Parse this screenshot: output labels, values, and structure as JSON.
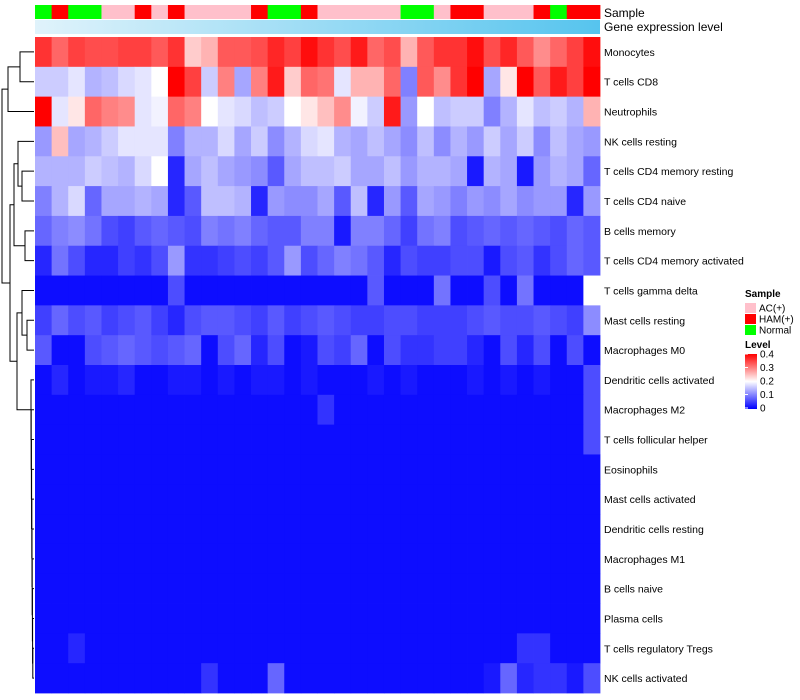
{
  "chart_data": {
    "type": "heatmap",
    "title": "",
    "annotations": {
      "sample_label": "Sample",
      "gene_label": "Gene expression level"
    },
    "legend": {
      "position": "right",
      "sample_title": "Sample",
      "sample_groups": [
        "AC(+)",
        "HAM(+)",
        "Normal"
      ],
      "level_title": "Level",
      "level_ticks": [
        "0.4",
        "0.3",
        "0.2",
        "0.1",
        "0"
      ],
      "level_range": [
        0,
        0.4
      ]
    },
    "colors": {
      "low": "#0000ff",
      "mid": "#ffffff",
      "high": "#ff0000",
      "AC(+)": "#ffc0cb",
      "HAM(+)": "#ff0000",
      "Normal": "#00ff00",
      "gene_bar_low": "#e0f3fb",
      "gene_bar_high": "#56c4ee",
      "dendrogram": "#000000"
    },
    "columns": [
      "Normal",
      "HAM(+)",
      "Normal",
      "Normal",
      "AC(+)",
      "AC(+)",
      "HAM(+)",
      "AC(+)",
      "HAM(+)",
      "AC(+)",
      "AC(+)",
      "AC(+)",
      "AC(+)",
      "HAM(+)",
      "Normal",
      "Normal",
      "HAM(+)",
      "AC(+)",
      "AC(+)",
      "AC(+)",
      "AC(+)",
      "AC(+)",
      "Normal",
      "Normal",
      "AC(+)",
      "HAM(+)",
      "HAM(+)",
      "AC(+)",
      "AC(+)",
      "AC(+)",
      "HAM(+)",
      "Normal",
      "HAM(+)",
      "HAM(+)"
    ],
    "rows": [
      "Monocytes",
      "T cells CD8",
      "Neutrophils",
      "NK cells resting",
      "T cells CD4 memory resting",
      "T cells CD4 naive",
      "B cells memory",
      "T cells CD4 memory activated",
      "T cells gamma delta",
      "Mast cells resting",
      "Macrophages M0",
      "Dendritic cells activated",
      "Macrophages M2",
      "T cells follicular helper",
      "Eosinophils",
      "Mast cells activated",
      "Dendritic cells resting",
      "Macrophages M1",
      "B cells naive",
      "Plasma cells",
      "T cells regulatory  Tregs",
      "NK cells activated"
    ],
    "values": [
      [
        0.36,
        0.32,
        0.35,
        0.34,
        0.34,
        0.35,
        0.35,
        0.33,
        0.36,
        0.24,
        0.26,
        0.33,
        0.33,
        0.34,
        0.37,
        0.35,
        0.39,
        0.36,
        0.34,
        0.38,
        0.32,
        0.34,
        0.26,
        0.33,
        0.36,
        0.36,
        0.39,
        0.34,
        0.37,
        0.33,
        0.29,
        0.32,
        0.35,
        0.39
      ],
      [
        0.16,
        0.16,
        0.18,
        0.14,
        0.15,
        0.17,
        0.18,
        0.2,
        0.4,
        0.35,
        0.16,
        0.3,
        0.13,
        0.3,
        0.38,
        0.24,
        0.32,
        0.31,
        0.18,
        0.26,
        0.26,
        0.32,
        0.1,
        0.33,
        0.29,
        0.36,
        0.4,
        0.13,
        0.22,
        0.4,
        0.33,
        0.38,
        0.35,
        0.4
      ],
      [
        0.4,
        0.18,
        0.22,
        0.32,
        0.3,
        0.29,
        0.18,
        0.19,
        0.32,
        0.3,
        0.2,
        0.18,
        0.17,
        0.15,
        0.16,
        0.2,
        0.22,
        0.25,
        0.29,
        0.19,
        0.16,
        0.38,
        0.12,
        0.2,
        0.15,
        0.16,
        0.16,
        0.1,
        0.14,
        0.18,
        0.15,
        0.16,
        0.14,
        0.26
      ],
      [
        0.12,
        0.25,
        0.13,
        0.14,
        0.16,
        0.18,
        0.18,
        0.18,
        0.1,
        0.14,
        0.14,
        0.17,
        0.13,
        0.16,
        0.11,
        0.14,
        0.17,
        0.18,
        0.14,
        0.13,
        0.15,
        0.13,
        0.11,
        0.15,
        0.11,
        0.14,
        0.12,
        0.16,
        0.13,
        0.16,
        0.11,
        0.15,
        0.13,
        0.12
      ],
      [
        0.14,
        0.14,
        0.14,
        0.16,
        0.15,
        0.14,
        0.17,
        0.2,
        0.03,
        0.13,
        0.15,
        0.13,
        0.12,
        0.11,
        0.07,
        0.13,
        0.15,
        0.15,
        0.16,
        0.13,
        0.13,
        0.15,
        0.12,
        0.14,
        0.14,
        0.13,
        0.02,
        0.14,
        0.13,
        0.02,
        0.12,
        0.14,
        0.13,
        0.08
      ],
      [
        0.1,
        0.14,
        0.17,
        0.08,
        0.13,
        0.13,
        0.14,
        0.13,
        0.03,
        0.07,
        0.15,
        0.15,
        0.14,
        0.03,
        0.12,
        0.11,
        0.11,
        0.13,
        0.07,
        0.15,
        0.03,
        0.12,
        0.07,
        0.13,
        0.12,
        0.1,
        0.12,
        0.11,
        0.13,
        0.11,
        0.12,
        0.12,
        0.03,
        0.12
      ],
      [
        0.08,
        0.1,
        0.11,
        0.09,
        0.06,
        0.05,
        0.07,
        0.08,
        0.07,
        0.06,
        0.1,
        0.09,
        0.1,
        0.08,
        0.07,
        0.07,
        0.1,
        0.1,
        0.02,
        0.1,
        0.1,
        0.08,
        0.05,
        0.09,
        0.1,
        0.06,
        0.07,
        0.08,
        0.07,
        0.08,
        0.07,
        0.06,
        0.08,
        0.07
      ],
      [
        0.03,
        0.09,
        0.06,
        0.03,
        0.03,
        0.05,
        0.04,
        0.06,
        0.12,
        0.04,
        0.04,
        0.05,
        0.06,
        0.05,
        0.07,
        0.12,
        0.06,
        0.08,
        0.1,
        0.09,
        0.07,
        0.03,
        0.06,
        0.05,
        0.05,
        0.06,
        0.06,
        0.02,
        0.06,
        0.07,
        0.04,
        0.06,
        0.08,
        0.07
      ],
      [
        0.01,
        0.01,
        0.01,
        0.01,
        0.01,
        0.01,
        0.01,
        0.01,
        0.06,
        0.01,
        0.01,
        0.01,
        0.01,
        0.01,
        0.01,
        0.01,
        0.01,
        0.01,
        0.01,
        0.01,
        0.07,
        0.01,
        0.01,
        0.01,
        0.09,
        0.01,
        0.01,
        0.06,
        0.01,
        0.09,
        0.01,
        0.01,
        0.01,
        0.2
      ],
      [
        0.05,
        0.08,
        0.06,
        0.07,
        0.05,
        0.06,
        0.07,
        0.05,
        0.03,
        0.06,
        0.07,
        0.07,
        0.06,
        0.05,
        0.07,
        0.05,
        0.06,
        0.07,
        0.06,
        0.05,
        0.05,
        0.06,
        0.06,
        0.05,
        0.05,
        0.05,
        0.06,
        0.07,
        0.06,
        0.06,
        0.07,
        0.06,
        0.05,
        0.11
      ],
      [
        0.07,
        0.01,
        0.01,
        0.06,
        0.07,
        0.08,
        0.07,
        0.06,
        0.07,
        0.08,
        0.01,
        0.06,
        0.08,
        0.03,
        0.06,
        0.01,
        0.02,
        0.06,
        0.05,
        0.08,
        0.01,
        0.06,
        0.04,
        0.04,
        0.05,
        0.05,
        0.03,
        0.01,
        0.06,
        0.03,
        0.06,
        0.01,
        0.06,
        0.01
      ],
      [
        0.01,
        0.03,
        0.01,
        0.02,
        0.02,
        0.03,
        0.01,
        0.01,
        0.02,
        0.02,
        0.01,
        0.02,
        0.01,
        0.02,
        0.02,
        0.01,
        0.02,
        0.01,
        0.01,
        0.01,
        0.02,
        0.01,
        0.02,
        0.01,
        0.01,
        0.01,
        0.02,
        0.01,
        0.02,
        0.01,
        0.02,
        0.01,
        0.01,
        0.06
      ],
      [
        0.01,
        0.01,
        0.01,
        0.01,
        0.01,
        0.01,
        0.01,
        0.01,
        0.01,
        0.01,
        0.01,
        0.01,
        0.01,
        0.01,
        0.01,
        0.01,
        0.01,
        0.04,
        0.01,
        0.01,
        0.01,
        0.01,
        0.01,
        0.01,
        0.01,
        0.01,
        0.01,
        0.01,
        0.01,
        0.01,
        0.01,
        0.01,
        0.01,
        0.06
      ],
      [
        0.01,
        0.01,
        0.01,
        0.01,
        0.01,
        0.01,
        0.01,
        0.01,
        0.01,
        0.01,
        0.01,
        0.01,
        0.01,
        0.01,
        0.01,
        0.01,
        0.01,
        0.01,
        0.01,
        0.01,
        0.01,
        0.01,
        0.01,
        0.01,
        0.01,
        0.01,
        0.01,
        0.01,
        0.01,
        0.01,
        0.01,
        0.01,
        0.01,
        0.06
      ],
      [
        0.01,
        0.01,
        0.01,
        0.01,
        0.01,
        0.01,
        0.01,
        0.01,
        0.01,
        0.01,
        0.01,
        0.01,
        0.01,
        0.01,
        0.01,
        0.01,
        0.01,
        0.01,
        0.01,
        0.01,
        0.01,
        0.01,
        0.01,
        0.01,
        0.01,
        0.01,
        0.01,
        0.01,
        0.01,
        0.01,
        0.01,
        0.01,
        0.01,
        0.01
      ],
      [
        0.01,
        0.01,
        0.01,
        0.01,
        0.01,
        0.01,
        0.01,
        0.01,
        0.01,
        0.01,
        0.01,
        0.01,
        0.01,
        0.01,
        0.01,
        0.01,
        0.01,
        0.01,
        0.01,
        0.01,
        0.01,
        0.01,
        0.01,
        0.01,
        0.01,
        0.01,
        0.01,
        0.01,
        0.01,
        0.01,
        0.01,
        0.01,
        0.01,
        0.01
      ],
      [
        0.01,
        0.01,
        0.01,
        0.01,
        0.01,
        0.01,
        0.01,
        0.01,
        0.01,
        0.01,
        0.01,
        0.01,
        0.01,
        0.01,
        0.01,
        0.01,
        0.01,
        0.01,
        0.01,
        0.01,
        0.01,
        0.01,
        0.01,
        0.01,
        0.01,
        0.01,
        0.01,
        0.01,
        0.01,
        0.01,
        0.01,
        0.01,
        0.01,
        0.01
      ],
      [
        0.01,
        0.01,
        0.01,
        0.01,
        0.01,
        0.01,
        0.01,
        0.01,
        0.01,
        0.01,
        0.01,
        0.01,
        0.01,
        0.01,
        0.01,
        0.01,
        0.01,
        0.01,
        0.01,
        0.01,
        0.01,
        0.01,
        0.01,
        0.01,
        0.01,
        0.01,
        0.01,
        0.01,
        0.01,
        0.01,
        0.01,
        0.01,
        0.01,
        0.01
      ],
      [
        0.01,
        0.01,
        0.01,
        0.01,
        0.01,
        0.01,
        0.01,
        0.01,
        0.01,
        0.01,
        0.01,
        0.01,
        0.01,
        0.01,
        0.01,
        0.01,
        0.01,
        0.01,
        0.01,
        0.01,
        0.01,
        0.01,
        0.01,
        0.01,
        0.01,
        0.01,
        0.01,
        0.01,
        0.01,
        0.01,
        0.01,
        0.01,
        0.01,
        0.01
      ],
      [
        0.01,
        0.01,
        0.01,
        0.01,
        0.01,
        0.01,
        0.01,
        0.01,
        0.01,
        0.01,
        0.01,
        0.01,
        0.01,
        0.01,
        0.01,
        0.01,
        0.01,
        0.01,
        0.01,
        0.01,
        0.01,
        0.01,
        0.01,
        0.01,
        0.01,
        0.01,
        0.01,
        0.01,
        0.01,
        0.01,
        0.01,
        0.01,
        0.01,
        0.01
      ],
      [
        0.01,
        0.01,
        0.03,
        0.01,
        0.01,
        0.01,
        0.01,
        0.01,
        0.01,
        0.01,
        0.01,
        0.01,
        0.01,
        0.01,
        0.01,
        0.01,
        0.01,
        0.01,
        0.01,
        0.01,
        0.01,
        0.01,
        0.01,
        0.01,
        0.01,
        0.01,
        0.01,
        0.01,
        0.01,
        0.04,
        0.04,
        0.01,
        0.01,
        0.01
      ],
      [
        0.01,
        0.01,
        0.01,
        0.01,
        0.01,
        0.01,
        0.01,
        0.01,
        0.01,
        0.01,
        0.04,
        0.01,
        0.01,
        0.01,
        0.08,
        0.01,
        0.01,
        0.01,
        0.01,
        0.01,
        0.01,
        0.01,
        0.01,
        0.01,
        0.01,
        0.01,
        0.01,
        0.02,
        0.08,
        0.03,
        0.04,
        0.04,
        0.02,
        0.06
      ]
    ]
  }
}
